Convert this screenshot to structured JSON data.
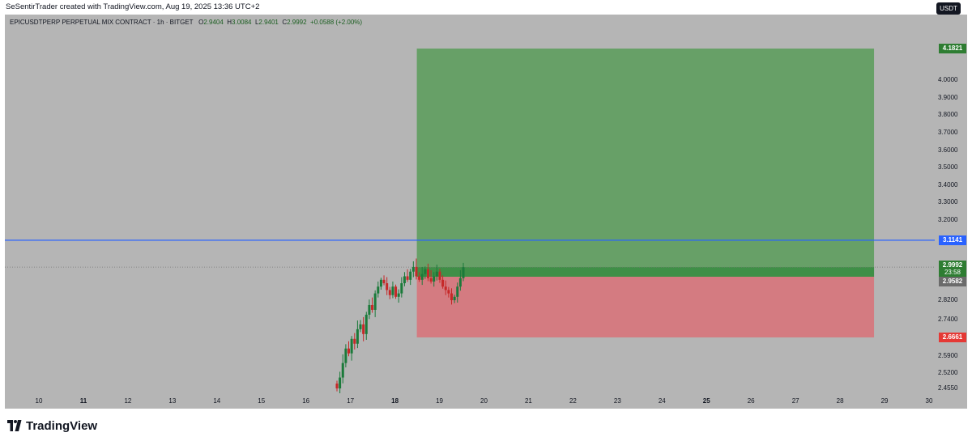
{
  "header": {
    "credit": "SeSentirTrader created with TradingView.com, Aug 19, 2025 13:36 UTC+2"
  },
  "legend": {
    "symbol": "EPICUSDTPERP PERPETUAL MIX CONTRACT · 1h · BITGET",
    "o_label": "O",
    "o": "2.9404",
    "h_label": "H",
    "h": "3.0084",
    "l_label": "L",
    "l": "2.9401",
    "c_label": "C",
    "c": "2.9992",
    "change": "+0.0588 (+2.00%)"
  },
  "currency_button": "USDT",
  "price_scale": [
    "4.0000",
    "3.9000",
    "3.8000",
    "3.7000",
    "3.6000",
    "3.5000",
    "3.4000",
    "3.3000",
    "3.2000",
    "2.8200",
    "2.7400",
    "2.5900",
    "2.5200",
    "2.4550"
  ],
  "price_tags": {
    "target": "4.1821",
    "line": "3.1141",
    "current": "2.9992",
    "countdown": "23:58",
    "entry": "2.9582",
    "stop": "2.6661"
  },
  "time_scale": [
    "10",
    "11",
    "12",
    "13",
    "14",
    "15",
    "16",
    "17",
    "18",
    "19",
    "20",
    "21",
    "22",
    "23",
    "24",
    "25",
    "26",
    "27",
    "28",
    "29",
    "30"
  ],
  "branding": {
    "logo_text": "TradingView"
  },
  "colors": {
    "background": "#b5b5b5",
    "profit_zone": "#67a067",
    "loss_zone": "#d47b81",
    "horizontal_line": "#2962ff",
    "candle_up": "#1b7a3a",
    "candle_down": "#c62828",
    "target_tag": "#2e7d32",
    "stop_tag": "#e53935"
  },
  "chart_data": {
    "type": "candlestick",
    "symbol": "EPICUSDTPERP",
    "exchange": "BITGET",
    "interval": "1h",
    "x_dates": [
      "16",
      "17",
      "18",
      "19"
    ],
    "y_range": [
      2.44,
      4.3
    ],
    "ohlc_summary": {
      "first_close": 2.455,
      "last_close": 2.9992,
      "high": 3.0084,
      "low": 2.455
    },
    "closes": [
      2.455,
      2.5,
      2.56,
      2.62,
      2.6,
      2.66,
      2.64,
      2.7,
      2.72,
      2.68,
      2.76,
      2.8,
      2.78,
      2.86,
      2.9,
      2.94,
      2.92,
      2.88,
      2.85,
      2.9,
      2.84,
      2.86,
      2.92,
      2.96,
      2.94,
      2.98,
      3.0,
      2.96,
      2.94,
      2.97,
      2.99,
      2.95,
      2.93,
      2.96,
      2.98,
      2.94,
      2.9,
      2.88,
      2.86,
      2.82,
      2.84,
      2.9,
      2.95,
      2.9992
    ],
    "position": {
      "type": "long",
      "entry": 2.9582,
      "target": 4.1821,
      "stop": 2.6661,
      "start_date": "18",
      "end_date": "29"
    },
    "horizontal_line": 3.1141,
    "current_price": 2.9992
  }
}
